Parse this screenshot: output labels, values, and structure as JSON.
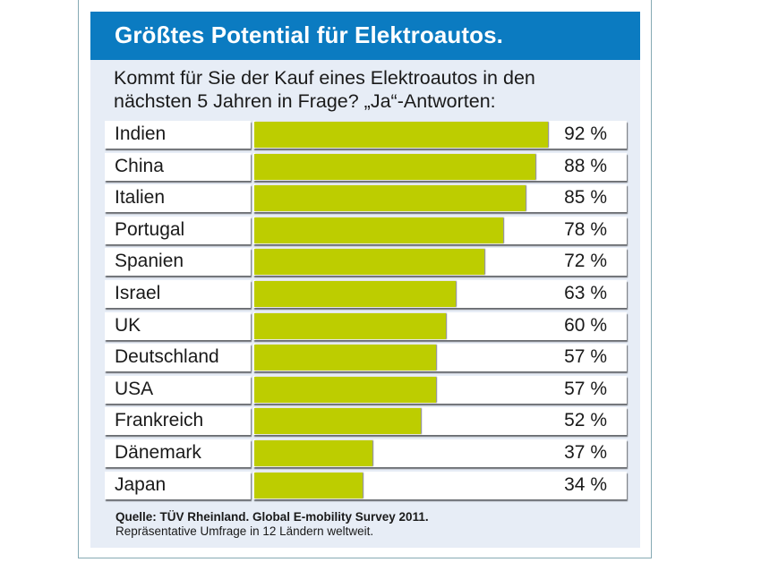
{
  "header": {
    "title": "Größtes Potential für Elektroautos."
  },
  "question": {
    "line1": "Kommt für Sie der Kauf eines Elektroautos in den",
    "line2": "nächsten 5 Jahren in Frage? „Ja“-Antworten:"
  },
  "source": {
    "line1": "Quelle: TÜV Rheinland. Global E-mobility Survey 2011.",
    "line2": "Repräsentative Umfrage in 12 Ländern weltweit."
  },
  "colors": {
    "header": "#0b7bc1",
    "bar": "#bdcd00",
    "panel": "#e7edf6"
  },
  "chart_data": {
    "type": "bar",
    "orientation": "horizontal",
    "title": "Größtes Potential für Elektroautos.",
    "subtitle": "Kommt für Sie der Kauf eines Elektroautos in den nächsten 5 Jahren in Frage? „Ja“-Antworten:",
    "xlabel": "",
    "ylabel": "",
    "unit": "%",
    "xlim": [
      0,
      100
    ],
    "grid": false,
    "legend": "none",
    "categories": [
      "Indien",
      "China",
      "Italien",
      "Portugal",
      "Spanien",
      "Israel",
      "UK",
      "Deutschland",
      "USA",
      "Frankreich",
      "Dänemark",
      "Japan"
    ],
    "values": [
      92,
      88,
      85,
      78,
      72,
      63,
      60,
      57,
      57,
      52,
      37,
      34
    ],
    "value_labels": [
      "92 %",
      "88 %",
      "85 %",
      "78 %",
      "72 %",
      "63 %",
      "60 %",
      "57 %",
      "57 %",
      "52 %",
      "37 %",
      "34 %"
    ],
    "source": "Quelle: TÜV Rheinland. Global E-mobility Survey 2011. Repräsentative Umfrage in 12 Ländern weltweit."
  }
}
